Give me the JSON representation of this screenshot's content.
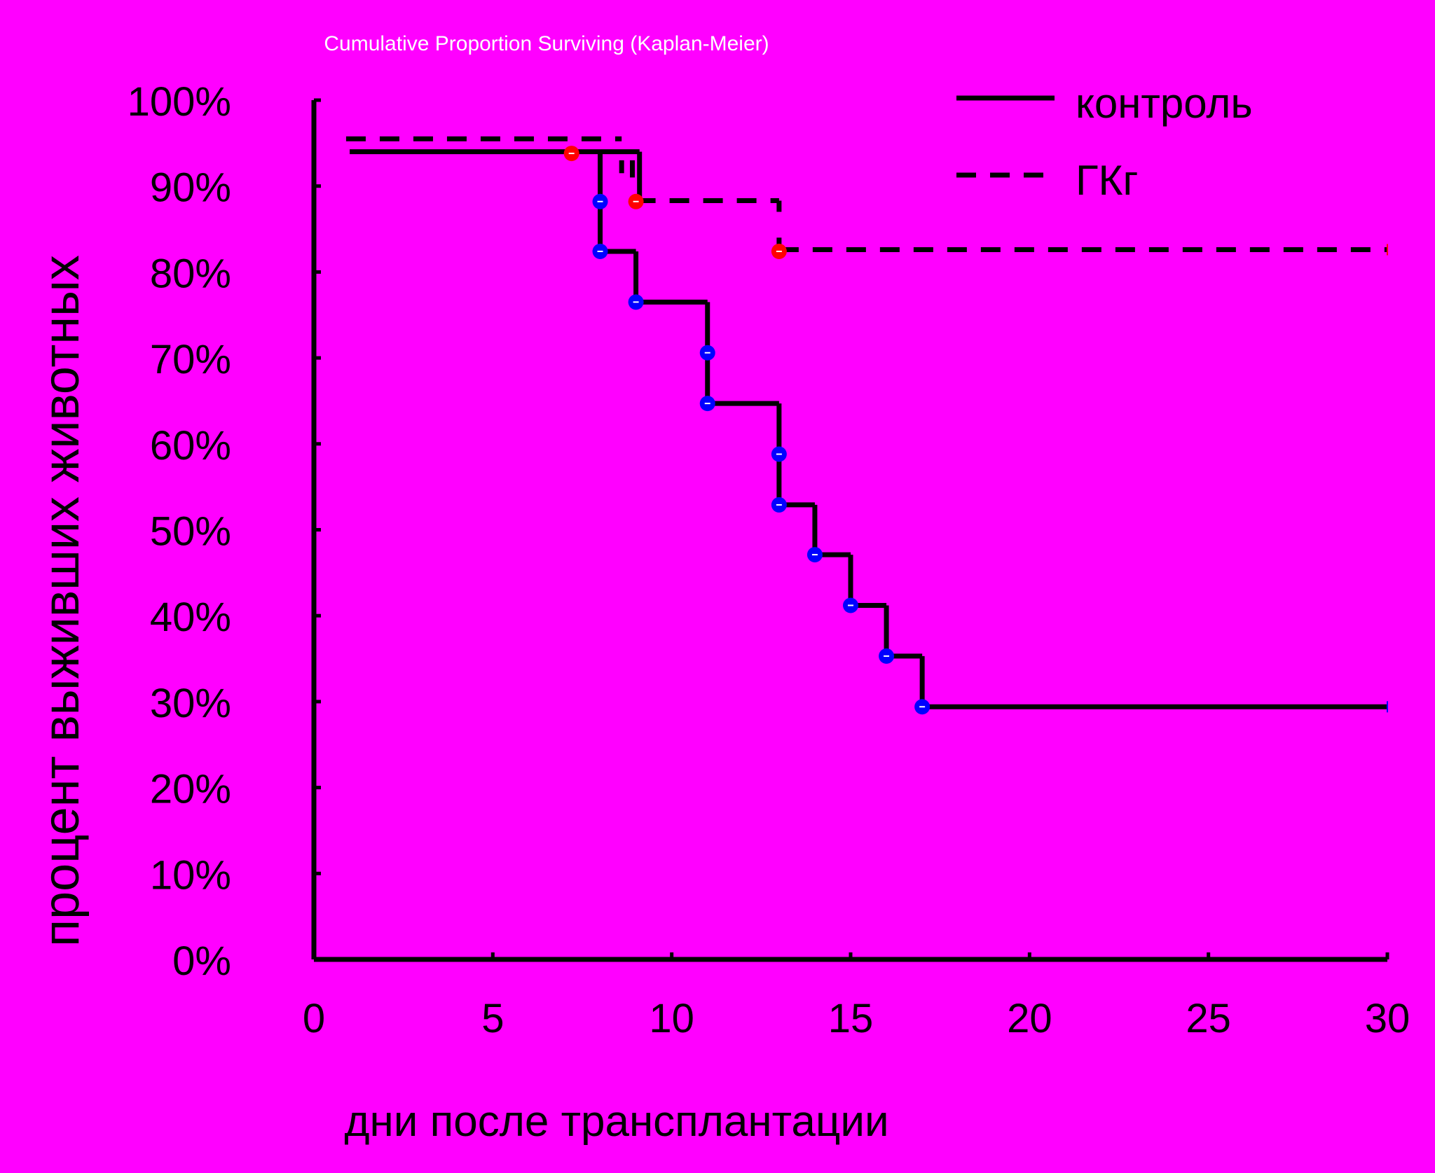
{
  "chart_data": {
    "type": "line",
    "title": "Cumulative Proportion Surviving (Kaplan-Meier)",
    "xlabel": "дни после трансплантации",
    "ylabel": "процент выживших животных",
    "xlim": [
      0,
      30
    ],
    "ylim": [
      0,
      100
    ],
    "x_ticks": [
      0,
      5,
      10,
      15,
      20,
      25,
      30
    ],
    "x_tick_labels": [
      "0",
      "5",
      "10",
      "15",
      "20",
      "25",
      "30"
    ],
    "y_ticks": [
      0,
      10,
      20,
      30,
      40,
      50,
      60,
      70,
      80,
      90,
      100
    ],
    "y_tick_labels": [
      "0%",
      "10%",
      "20%",
      "30%",
      "40%",
      "50%",
      "60%",
      "70%",
      "80%",
      "90%",
      "100%"
    ],
    "grid": false,
    "legend_position": "top-right",
    "colors": {
      "background": "#ff00ff",
      "axes": "#000000",
      "title": "#ffffff",
      "event_control": "#0000ff",
      "event_gkg": "#ff0000"
    },
    "series": [
      {
        "name": "контроль",
        "style": "solid",
        "steps": [
          [
            1,
            94
          ],
          [
            9.1,
            94
          ],
          [
            9.1,
            93.5
          ],
          [
            9.3,
            93.5
          ],
          [
            9.3,
            88
          ]
        ],
        "segments": [
          [
            1.0,
            94.0,
            8.0,
            94.0
          ],
          [
            8.0,
            94.0,
            8.0,
            82.4
          ],
          [
            8.0,
            82.4,
            9.0,
            82.4
          ],
          [
            9.0,
            82.4,
            9.0,
            76.5
          ],
          [
            9.0,
            76.5,
            11.0,
            76.5
          ],
          [
            11.0,
            76.5,
            11.0,
            64.7
          ],
          [
            11.0,
            64.7,
            13.0,
            64.7
          ],
          [
            13.0,
            64.7,
            13.0,
            52.9
          ],
          [
            13.0,
            52.9,
            14.0,
            52.9
          ],
          [
            14.0,
            52.9,
            14.0,
            47.1
          ],
          [
            14.0,
            47.1,
            15.0,
            47.1
          ],
          [
            15.0,
            47.1,
            15.0,
            41.2
          ],
          [
            15.0,
            41.2,
            16.0,
            41.2
          ],
          [
            16.0,
            41.2,
            16.0,
            35.3
          ],
          [
            16.0,
            35.3,
            17.0,
            35.3
          ],
          [
            17.0,
            35.3,
            17.0,
            29.4
          ],
          [
            17.0,
            29.4,
            30.0,
            29.4
          ],
          [
            8.0,
            94.0,
            9.1,
            94.0
          ],
          [
            9.1,
            94.0,
            9.1,
            88.0
          ]
        ],
        "events": [
          [
            8.0,
            88.2
          ],
          [
            8.0,
            82.4
          ],
          [
            9.0,
            76.5
          ],
          [
            11.0,
            70.6
          ],
          [
            11.0,
            64.7
          ],
          [
            13.0,
            58.8
          ],
          [
            13.0,
            52.9
          ],
          [
            14.0,
            47.1
          ],
          [
            15.0,
            41.2
          ],
          [
            16.0,
            35.3
          ],
          [
            17.0,
            29.4
          ]
        ],
        "censored": [
          [
            30.0,
            29.4
          ]
        ]
      },
      {
        "name": "ГКг",
        "style": "dashed",
        "segments": [
          [
            0.9,
            95.5,
            8.6,
            95.5
          ],
          [
            8.6,
            93.0,
            8.6,
            91.5
          ],
          [
            8.9,
            93.0,
            8.9,
            91.0
          ],
          [
            9.0,
            88.3,
            13.0,
            88.3
          ],
          [
            13.0,
            88.3,
            13.0,
            87.0
          ],
          [
            13.0,
            84.0,
            13.0,
            82.6
          ],
          [
            13.0,
            82.6,
            30.0,
            82.6
          ]
        ],
        "events": [
          [
            7.2,
            93.8
          ],
          [
            9.0,
            88.2
          ],
          [
            13.0,
            82.4
          ]
        ],
        "censored": [
          [
            30.0,
            82.6
          ]
        ]
      }
    ]
  }
}
